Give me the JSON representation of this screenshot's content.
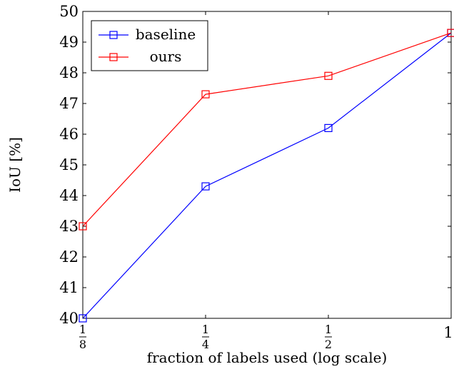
{
  "chart_data": {
    "type": "line",
    "xlabel": "fraction of labels used (log scale)",
    "ylabel": "IoU [%]",
    "x_scale": "log2",
    "x": [
      0.125,
      0.25,
      0.5,
      1
    ],
    "x_tick_labels": [
      {
        "num": "1",
        "den": "8"
      },
      {
        "num": "1",
        "den": "4"
      },
      {
        "num": "1",
        "den": "2"
      },
      {
        "num": "1",
        "den": ""
      }
    ],
    "ylim": [
      40,
      50
    ],
    "y_ticks": [
      40,
      41,
      42,
      43,
      44,
      45,
      46,
      47,
      48,
      49,
      50
    ],
    "grid": false,
    "legend_position": "top-left",
    "series": [
      {
        "name": "baseline",
        "color": "#0000ff",
        "marker": "square",
        "values": [
          40.0,
          44.3,
          46.2,
          49.3
        ]
      },
      {
        "name": "ours",
        "color": "#ff0000",
        "marker": "square",
        "values": [
          43.0,
          47.3,
          47.9,
          49.3
        ]
      }
    ]
  }
}
